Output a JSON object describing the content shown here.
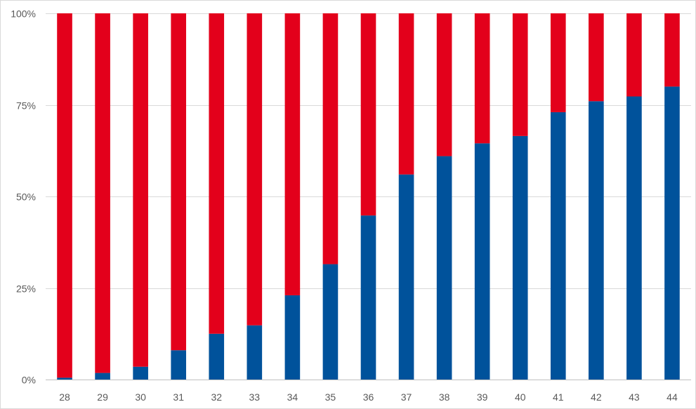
{
  "chart_data": {
    "type": "bar",
    "stacked": true,
    "percent_stacked": true,
    "title": "",
    "xlabel": "",
    "ylabel": "",
    "ylim": [
      0,
      100
    ],
    "yticks": [
      "0%",
      "25%",
      "50%",
      "75%",
      "100%"
    ],
    "ytick_values": [
      0,
      25,
      50,
      75,
      100
    ],
    "grid": true,
    "legend": "none",
    "categories": [
      "28",
      "29",
      "30",
      "31",
      "32",
      "33",
      "34",
      "35",
      "36",
      "37",
      "38",
      "39",
      "40",
      "41",
      "42",
      "43",
      "44"
    ],
    "series": [
      {
        "color": "#00529b",
        "values": [
          0.5,
          1.8,
          3.5,
          8,
          12.5,
          14.8,
          23,
          31.5,
          44.8,
          56,
          61,
          64.5,
          66.5,
          73,
          76,
          77.3,
          80
        ]
      },
      {
        "color": "#e3001b",
        "values": [
          99.5,
          98.2,
          96.5,
          92,
          87.5,
          85.2,
          77,
          68.5,
          55.2,
          44,
          39,
          35.5,
          33.5,
          27,
          24,
          22.7,
          20
        ]
      }
    ],
    "gridline_color": "#d9d9d9",
    "axis_color": "#bfbfbf"
  }
}
